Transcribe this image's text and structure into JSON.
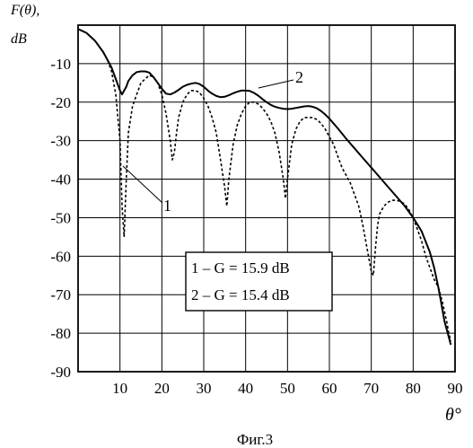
{
  "chart_data": {
    "type": "line",
    "ylabel_lines": [
      "F(θ),",
      "dB"
    ],
    "xlabel": "θ°",
    "caption": "Фиг.3",
    "xlim": [
      0,
      90
    ],
    "ylim": [
      -90,
      0
    ],
    "x_ticks": [
      10,
      20,
      30,
      40,
      50,
      60,
      70,
      80,
      90
    ],
    "y_ticks": [
      -10,
      -20,
      -30,
      -40,
      -50,
      -60,
      -70,
      -80,
      -90
    ],
    "grid": true,
    "legend": {
      "entries": [
        {
          "number": "1",
          "text": "1 – G = 15.9 dB"
        },
        {
          "number": "2",
          "text": "2 – G = 15.4 dB"
        }
      ],
      "placement": "lower-center"
    },
    "curve_labels": [
      "1",
      "2"
    ],
    "series": [
      {
        "id": "1",
        "style": "dashed",
        "x": [
          0,
          2,
          4,
          6,
          7,
          8,
          9,
          10,
          10.5,
          11,
          11.5,
          12,
          13,
          14,
          15,
          16,
          17,
          18,
          19,
          20,
          21,
          22,
          22.5,
          23,
          23.5,
          24,
          25,
          26,
          27,
          28,
          29,
          30,
          31,
          32,
          33,
          34,
          35,
          35.5,
          36,
          37,
          38,
          39,
          40,
          41,
          42,
          43,
          44,
          45,
          46,
          47,
          48,
          49,
          49.5,
          50,
          51,
          52,
          53,
          54,
          55,
          56,
          57,
          58,
          59,
          60,
          61,
          62,
          63,
          64,
          65,
          66,
          67,
          68,
          69,
          70,
          70.5,
          71,
          71.5,
          72,
          73,
          74,
          75,
          76,
          77,
          78,
          79,
          80,
          81,
          82,
          83,
          84,
          85,
          86,
          87,
          88,
          88.5,
          89
        ],
        "y": [
          -1,
          -2,
          -4,
          -7,
          -9,
          -12,
          -18,
          -30,
          -47,
          -55,
          -40,
          -28,
          -21,
          -18,
          -15,
          -14,
          -13,
          -13.5,
          -15,
          -18,
          -23,
          -30,
          -35,
          -33,
          -28,
          -24,
          -20,
          -18,
          -17,
          -17,
          -17.5,
          -19,
          -21,
          -24,
          -28,
          -35,
          -42,
          -47,
          -40,
          -31,
          -26,
          -23,
          -21,
          -20,
          -20,
          -20.5,
          -21.5,
          -23,
          -25,
          -28,
          -33,
          -40,
          -45,
          -40,
          -31,
          -27,
          -25,
          -24,
          -24,
          -24,
          -24.5,
          -25.5,
          -27,
          -29,
          -31,
          -34,
          -37,
          -39,
          -41,
          -44,
          -47,
          -52,
          -58,
          -64,
          -65,
          -58,
          -52,
          -49,
          -47,
          -46,
          -45.5,
          -45.5,
          -45.8,
          -46.5,
          -48,
          -50,
          -53,
          -56,
          -60,
          -63,
          -66,
          -68,
          -72,
          -77,
          -80,
          -82
        ]
      },
      {
        "id": "2",
        "style": "solid",
        "x": [
          0,
          2,
          4,
          6,
          7,
          8,
          9,
          10,
          10.5,
          11,
          11.5,
          12,
          13,
          14,
          15,
          16,
          17,
          18,
          19,
          20,
          21,
          22,
          23,
          24,
          25,
          26,
          27,
          28,
          29,
          30,
          31,
          32,
          33,
          34,
          35,
          36,
          37,
          38,
          39,
          40,
          41,
          42,
          43,
          44,
          45,
          46,
          47,
          48,
          49,
          50,
          51,
          52,
          53,
          54,
          55,
          56,
          57,
          58,
          59,
          60,
          62,
          64,
          66,
          68,
          70,
          72,
          74,
          76,
          78,
          80,
          82,
          84,
          85,
          86,
          86.5,
          87,
          87.5,
          88,
          88.5,
          89
        ],
        "y": [
          -1,
          -2,
          -4,
          -7,
          -9,
          -11,
          -14,
          -17,
          -18,
          -17,
          -16,
          -14.5,
          -13,
          -12.2,
          -12,
          -12,
          -12.3,
          -13.5,
          -15,
          -16.5,
          -17.8,
          -18,
          -17.5,
          -16.8,
          -16,
          -15.5,
          -15.2,
          -15,
          -15.3,
          -16,
          -17,
          -17.8,
          -18.4,
          -18.7,
          -18.6,
          -18.2,
          -17.7,
          -17.3,
          -17,
          -17,
          -17.1,
          -17.6,
          -18.3,
          -19.2,
          -20,
          -20.7,
          -21.2,
          -21.5,
          -21.7,
          -21.8,
          -21.7,
          -21.5,
          -21.3,
          -21.1,
          -21,
          -21.2,
          -21.6,
          -22.3,
          -23.2,
          -24.3,
          -26.8,
          -29.5,
          -32,
          -34.5,
          -37,
          -39.5,
          -42,
          -44.5,
          -47,
          -50,
          -53.5,
          -59,
          -63,
          -68,
          -71,
          -74,
          -77,
          -79,
          -81,
          -83
        ]
      }
    ]
  }
}
